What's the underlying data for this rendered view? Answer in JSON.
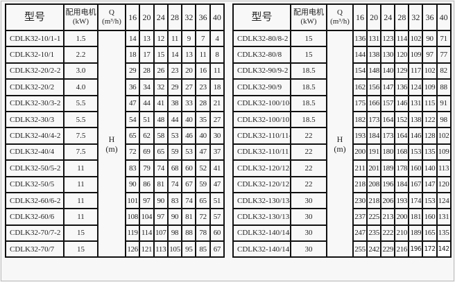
{
  "header": {
    "model": "型号",
    "motor": "配用电机",
    "motor_unit": "(kW)",
    "q": "Q",
    "q_unit": "(m³/h)",
    "flows": [
      "16",
      "20",
      "24",
      "28",
      "32",
      "36",
      "40"
    ]
  },
  "head_label": {
    "h": "H",
    "unit": "(m)"
  },
  "left_rows": [
    {
      "model": "CDLK32-10/1-1",
      "kw": "1.5",
      "h": [
        "14",
        "13",
        "12",
        "11",
        "9",
        "7",
        "4"
      ]
    },
    {
      "model": "CDLK32-10/1",
      "kw": "2.2",
      "h": [
        "18",
        "17",
        "15",
        "14",
        "13",
        "11",
        "8"
      ]
    },
    {
      "model": "CDLK32-20/2-2",
      "kw": "3.0",
      "h": [
        "29",
        "28",
        "26",
        "23",
        "20",
        "16",
        "11"
      ]
    },
    {
      "model": "CDLK32-20/2",
      "kw": "4.0",
      "h": [
        "36",
        "34",
        "32",
        "29",
        "27",
        "23",
        "18"
      ]
    },
    {
      "model": "CDLK32-30/3-2",
      "kw": "5.5",
      "h": [
        "47",
        "44",
        "41",
        "38",
        "33",
        "28",
        "21"
      ]
    },
    {
      "model": "CDLK32-30/3",
      "kw": "5.5",
      "h": [
        "54",
        "51",
        "48",
        "44",
        "40",
        "35",
        "27"
      ]
    },
    {
      "model": "CDLK32-40/4-2",
      "kw": "7.5",
      "h": [
        "65",
        "62",
        "58",
        "53",
        "46",
        "40",
        "30"
      ]
    },
    {
      "model": "CDLK32-40/4",
      "kw": "7.5",
      "h": [
        "72",
        "69",
        "65",
        "59",
        "53",
        "47",
        "37"
      ]
    },
    {
      "model": "CDLK32-50/5-2",
      "kw": "11",
      "h": [
        "83",
        "79",
        "74",
        "68",
        "60",
        "52",
        "41"
      ]
    },
    {
      "model": "CDLK32-50/5",
      "kw": "11",
      "h": [
        "90",
        "86",
        "81",
        "74",
        "67",
        "59",
        "47"
      ]
    },
    {
      "model": "CDLK32-60/6-2",
      "kw": "11",
      "h": [
        "101",
        "97",
        "90",
        "83",
        "74",
        "65",
        "51"
      ]
    },
    {
      "model": "CDLK32-60/6",
      "kw": "11",
      "h": [
        "108",
        "104",
        "97",
        "90",
        "81",
        "72",
        "57"
      ]
    },
    {
      "model": "CDLK32-70/7-2",
      "kw": "15",
      "h": [
        "119",
        "114",
        "107",
        "98",
        "88",
        "78",
        "60"
      ]
    },
    {
      "model": "CDLK32-70/7",
      "kw": "15",
      "h": [
        "126",
        "121",
        "113",
        "105",
        "95",
        "85",
        "67"
      ]
    }
  ],
  "right_rows": [
    {
      "model": "CDLK32-80/8-2",
      "kw": "15",
      "h": [
        "136",
        "131",
        "123",
        "114",
        "102",
        "90",
        "71"
      ]
    },
    {
      "model": "CDLK32-80/8",
      "kw": "15",
      "h": [
        "144",
        "138",
        "130",
        "120",
        "109",
        "97",
        "77"
      ]
    },
    {
      "model": "CDLK32-90/9-2",
      "kw": "18.5",
      "h": [
        "154",
        "148",
        "140",
        "129",
        "117",
        "102",
        "82"
      ]
    },
    {
      "model": "CDLK32-90/9",
      "kw": "18.5",
      "h": [
        "162",
        "156",
        "147",
        "136",
        "124",
        "109",
        "88"
      ]
    },
    {
      "model": "CDLK32-100/10-2",
      "kw": "18.5",
      "h": [
        "175",
        "166",
        "157",
        "146",
        "131",
        "115",
        "91"
      ]
    },
    {
      "model": "CDLK32-100/10",
      "kw": "18.5",
      "h": [
        "182",
        "173",
        "164",
        "152",
        "138",
        "122",
        "98"
      ]
    },
    {
      "model": "CDLK32-110/11-2",
      "kw": "22",
      "h": [
        "193",
        "184",
        "173",
        "164",
        "146",
        "128",
        "102"
      ]
    },
    {
      "model": "CDLK32-110/11",
      "kw": "22",
      "h": [
        "200",
        "191",
        "180",
        "168",
        "153",
        "135",
        "109"
      ]
    },
    {
      "model": "CDLK32-120/12-2",
      "kw": "22",
      "h": [
        "211",
        "201",
        "189",
        "178",
        "160",
        "140",
        "113"
      ]
    },
    {
      "model": "CDLK32-120/12",
      "kw": "22",
      "h": [
        "218",
        "208",
        "196",
        "184",
        "167",
        "147",
        "120"
      ]
    },
    {
      "model": "CDLK32-130/13-2",
      "kw": "30",
      "h": [
        "230",
        "218",
        "206",
        "193",
        "174",
        "153",
        "124"
      ]
    },
    {
      "model": "CDLK32-130/13",
      "kw": "30",
      "h": [
        "237",
        "225",
        "213",
        "200",
        "181",
        "160",
        "131"
      ]
    },
    {
      "model": "CDLK32-140/14-2",
      "kw": "30",
      "h": [
        "247",
        "235",
        "222",
        "210",
        "189",
        "165",
        "135"
      ]
    },
    {
      "model": "CDLK32-140/14",
      "kw": "30",
      "h": [
        "255",
        "242",
        "229",
        "216",
        "196",
        "172",
        "142"
      ]
    }
  ]
}
